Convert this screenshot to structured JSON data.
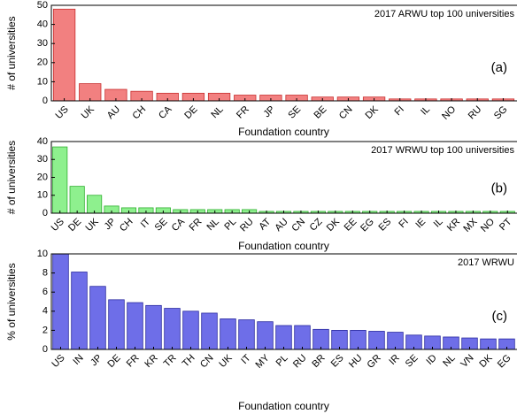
{
  "chart_data": [
    {
      "type": "bar",
      "title": "2017 ARWU top 100 universities",
      "annotation": "(a)",
      "x_label": "Foundation country",
      "y_label": "# of universities",
      "categories": [
        "US",
        "UK",
        "AU",
        "CH",
        "CA",
        "DE",
        "NL",
        "FR",
        "JP",
        "SE",
        "BE",
        "CN",
        "DK",
        "FI",
        "IL",
        "NO",
        "RU",
        "SG"
      ],
      "values": [
        48,
        9,
        6,
        5,
        4,
        4,
        4,
        3,
        3,
        3,
        2,
        2,
        2,
        1,
        1,
        1,
        1,
        1
      ],
      "color": "#f28080",
      "ylim": [
        0,
        50
      ],
      "yticks": [
        0,
        10,
        20,
        30,
        40,
        50
      ]
    },
    {
      "type": "bar",
      "title": "2017 WRWU top 100 universities",
      "annotation": "(b)",
      "x_label": "Foundation country",
      "y_label": "# of universities",
      "categories": [
        "US",
        "DE",
        "UK",
        "JP",
        "CH",
        "IT",
        "SE",
        "CA",
        "FR",
        "NL",
        "PL",
        "RU",
        "AT",
        "AU",
        "CN",
        "CZ",
        "DK",
        "EE",
        "EG",
        "ES",
        "FI",
        "IE",
        "IL",
        "KR",
        "MX",
        "NO",
        "PT"
      ],
      "values": [
        37,
        15,
        10,
        4,
        3,
        3,
        3,
        2,
        2,
        2,
        2,
        2,
        1,
        1,
        1,
        1,
        1,
        1,
        1,
        1,
        1,
        1,
        1,
        1,
        1,
        1,
        1
      ],
      "color": "#8ef08e",
      "ylim": [
        0,
        40
      ],
      "yticks": [
        0,
        10,
        20,
        30,
        40
      ]
    },
    {
      "type": "bar",
      "title": "2017 WRWU",
      "annotation": "(c)",
      "x_label": "Foundation country",
      "y_label": "% of universities",
      "categories": [
        "US",
        "IN",
        "JP",
        "DE",
        "FR",
        "KR",
        "TR",
        "TH",
        "CN",
        "UK",
        "IT",
        "MY",
        "PL",
        "RU",
        "BR",
        "ES",
        "HU",
        "GR",
        "IR",
        "SE",
        "ID",
        "NL",
        "VN",
        "DK",
        "EG"
      ],
      "values": [
        10,
        8.1,
        6.6,
        5.2,
        4.9,
        4.6,
        4.3,
        4.0,
        3.8,
        3.2,
        3.1,
        2.9,
        2.5,
        2.5,
        2.1,
        2.0,
        2.0,
        1.9,
        1.8,
        1.5,
        1.4,
        1.3,
        1.2,
        1.1,
        1.1
      ],
      "color": "#6e6ee8",
      "ylim": [
        0,
        10
      ],
      "yticks": [
        0,
        2,
        4,
        6,
        8,
        10
      ]
    }
  ]
}
